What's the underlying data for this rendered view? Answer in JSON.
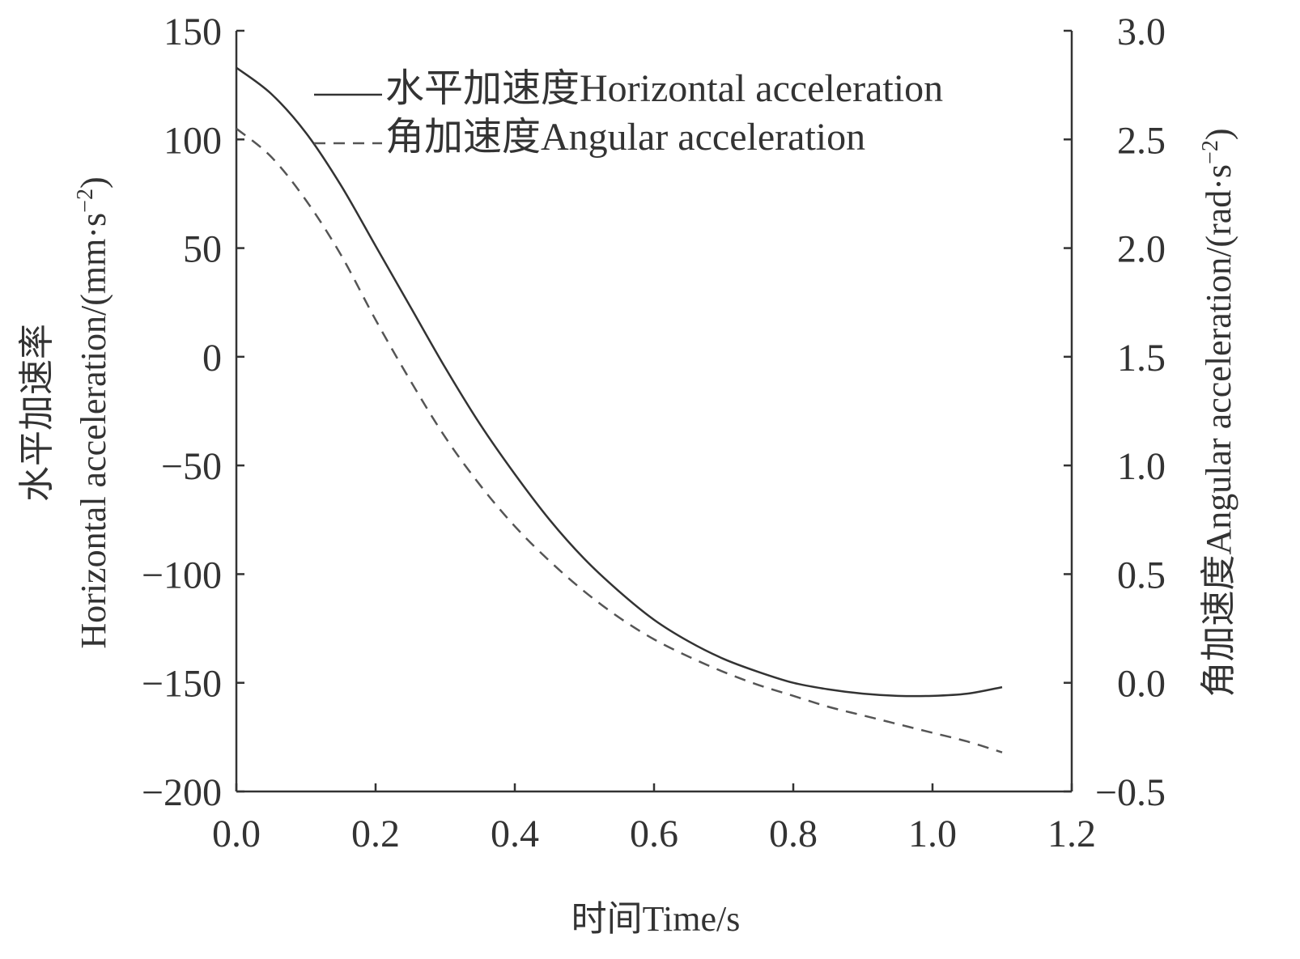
{
  "chart_data": {
    "type": "line",
    "xlabel": "时间Time/s",
    "ylabel_left": {
      "main": "Horizontal acceleration/(mm·s",
      "sup": "−2",
      "close": ")",
      "cn": "水平加速率"
    },
    "ylabel_right": {
      "main": "角加速度Angular acceleration/(rad·s",
      "sup": "−2",
      "close": ")"
    },
    "xlim": [
      0.0,
      1.2
    ],
    "ylim_left": [
      -200,
      150
    ],
    "ylim_right": [
      -0.5,
      3.0
    ],
    "xticks": [
      0.0,
      0.2,
      0.4,
      0.6,
      0.8,
      1.0,
      1.2
    ],
    "xtick_labels": [
      "0.0",
      "0.2",
      "0.4",
      "0.6",
      "0.8",
      "1.0",
      "1.2"
    ],
    "yticks_left": [
      150,
      100,
      50,
      0,
      -50,
      -100,
      -150,
      -200
    ],
    "ytick_labels_left": [
      "150",
      "100",
      "50",
      "0",
      "−50",
      "−100",
      "−150",
      "−200"
    ],
    "yticks_right": [
      3.0,
      2.5,
      2.0,
      1.5,
      1.0,
      0.5,
      0.0,
      -0.5
    ],
    "ytick_labels_right": [
      "3.0",
      "2.5",
      "2.0",
      "1.5",
      "1.0",
      "0.5",
      "0.0",
      "−0.5"
    ],
    "legend_placement": "top-right",
    "grid": false,
    "series": [
      {
        "name": "水平加速度Horizontal acceleration",
        "axis": "left",
        "style": "solid",
        "color": "#333333",
        "x": [
          0.0,
          0.05,
          0.1,
          0.15,
          0.2,
          0.25,
          0.3,
          0.35,
          0.4,
          0.45,
          0.5,
          0.55,
          0.6,
          0.65,
          0.7,
          0.75,
          0.8,
          0.85,
          0.9,
          0.95,
          1.0,
          1.05,
          1.1
        ],
        "y": [
          133,
          121,
          103,
          79,
          51,
          23,
          -5,
          -31,
          -54,
          -75,
          -93,
          -108,
          -121,
          -131,
          -139,
          -145,
          -150,
          -153,
          -155,
          -156,
          -156,
          -155,
          -152
        ]
      },
      {
        "name": "角加速度Angular acceleration",
        "axis": "right",
        "style": "dashed",
        "color": "#555555",
        "x": [
          0.0,
          0.05,
          0.1,
          0.15,
          0.2,
          0.25,
          0.3,
          0.35,
          0.4,
          0.45,
          0.5,
          0.55,
          0.6,
          0.65,
          0.7,
          0.75,
          0.8,
          0.85,
          0.9,
          0.95,
          1.0,
          1.05,
          1.1
        ],
        "y": [
          2.55,
          2.42,
          2.22,
          1.97,
          1.67,
          1.39,
          1.13,
          0.91,
          0.72,
          0.56,
          0.42,
          0.3,
          0.2,
          0.12,
          0.05,
          -0.01,
          -0.06,
          -0.11,
          -0.15,
          -0.19,
          -0.23,
          -0.27,
          -0.32
        ]
      }
    ]
  }
}
